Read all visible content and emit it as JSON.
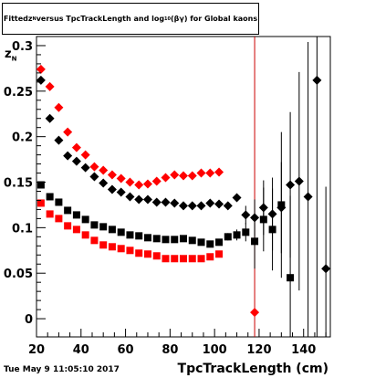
{
  "title_parts": [
    "Fitted ",
    "z",
    "N",
    " versus TpcTrackLength and log",
    "10",
    "(βγ) for Global kaons"
  ],
  "ylabel_main": "z",
  "ylabel_sub": "N",
  "xlabel": "TpcTrackLength (cm)",
  "timestamp": "Tue May  9 11:05:10 2017",
  "chart_data": {
    "type": "scatter",
    "title": "Fitted zN versus TpcTrackLength and log10(βγ) for Global kaons",
    "xlabel": "TpcTrackLength (cm)",
    "ylabel": "zN",
    "xlim": [
      20,
      152
    ],
    "ylim": [
      -0.02,
      0.31
    ],
    "x_ticks": [
      20,
      40,
      60,
      80,
      100,
      120,
      140
    ],
    "y_ticks": [
      0,
      0.05,
      0.1,
      0.15,
      0.2,
      0.25,
      0.3
    ],
    "y_tick_labels": [
      "0",
      "0.05",
      "0.1",
      "0.15",
      "0.2",
      "0.25",
      "0.3"
    ],
    "vertical_line": {
      "x": 118,
      "color": "#cc0000"
    },
    "series": [
      {
        "marker": "square",
        "color": "#ff0000",
        "x": [
          22,
          26,
          30,
          34,
          38,
          42,
          46,
          50,
          54,
          58,
          62,
          66,
          70,
          74,
          78,
          82,
          86,
          90,
          94,
          98,
          102
        ],
        "y": [
          0.127,
          0.115,
          0.11,
          0.102,
          0.098,
          0.092,
          0.086,
          0.081,
          0.079,
          0.077,
          0.075,
          0.072,
          0.071,
          0.069,
          0.066,
          0.066,
          0.066,
          0.066,
          0.066,
          0.068,
          0.071
        ]
      },
      {
        "marker": "square",
        "color": "#000000",
        "x": [
          22,
          26,
          30,
          34,
          38,
          42,
          46,
          50,
          54,
          58,
          62,
          66,
          70,
          74,
          78,
          82,
          86,
          90,
          94,
          98,
          102,
          106,
          110,
          114,
          118,
          122,
          126,
          130,
          134
        ],
        "y": [
          0.147,
          0.134,
          0.128,
          0.119,
          0.114,
          0.109,
          0.103,
          0.101,
          0.098,
          0.095,
          0.092,
          0.091,
          0.089,
          0.088,
          0.087,
          0.087,
          0.088,
          0.086,
          0.084,
          0.082,
          0.084,
          0.09,
          0.092,
          0.095,
          0.085,
          0.109,
          0.098,
          0.125,
          0.045
        ],
        "yerr": [
          0.002,
          0.002,
          0.002,
          0.002,
          0.002,
          0.002,
          0.002,
          0.002,
          0.002,
          0.002,
          0.002,
          0.002,
          0.002,
          0.002,
          0.002,
          0.002,
          0.002,
          0.002,
          0.002,
          0.002,
          0.002,
          0.004,
          0.006,
          0.01,
          0.03,
          0.035,
          0.045,
          0.08,
          0.09
        ]
      },
      {
        "marker": "diamond",
        "color": "#ff0000",
        "x": [
          22,
          26,
          30,
          34,
          38,
          42,
          46,
          50,
          54,
          58,
          62,
          66,
          70,
          74,
          78,
          82,
          86,
          90,
          94,
          98,
          102,
          118
        ],
        "y": [
          0.274,
          0.255,
          0.232,
          0.205,
          0.188,
          0.18,
          0.167,
          0.163,
          0.158,
          0.154,
          0.15,
          0.147,
          0.148,
          0.151,
          0.155,
          0.158,
          0.157,
          0.157,
          0.16,
          0.16,
          0.161,
          0.007
        ],
        "yerr": [
          0,
          0,
          0,
          0,
          0,
          0,
          0,
          0,
          0,
          0,
          0,
          0,
          0,
          0,
          0,
          0,
          0,
          0,
          0,
          0,
          0,
          0
        ]
      },
      {
        "marker": "diamond",
        "color": "#000000",
        "x": [
          22,
          26,
          30,
          34,
          38,
          42,
          46,
          50,
          54,
          58,
          62,
          66,
          70,
          74,
          78,
          82,
          86,
          90,
          94,
          98,
          102,
          106,
          110,
          114,
          118,
          122,
          126,
          130,
          134,
          138,
          142,
          146,
          150
        ],
        "y": [
          0.262,
          0.22,
          0.196,
          0.179,
          0.173,
          0.166,
          0.156,
          0.149,
          0.142,
          0.139,
          0.134,
          0.131,
          0.131,
          0.128,
          0.128,
          0.127,
          0.124,
          0.124,
          0.124,
          0.127,
          0.126,
          0.124,
          0.133,
          0.114,
          0.111,
          0.122,
          0.115,
          0.122,
          0.147,
          0.151,
          0.134,
          0.262,
          0.055
        ],
        "yerr": [
          0.002,
          0.002,
          0.002,
          0.002,
          0.002,
          0.002,
          0.002,
          0.002,
          0.002,
          0.002,
          0.002,
          0.002,
          0.002,
          0.002,
          0.002,
          0.002,
          0.002,
          0.002,
          0.002,
          0.002,
          0.002,
          0.003,
          0.004,
          0.01,
          0.02,
          0.03,
          0.04,
          0.05,
          0.08,
          0.12,
          0.17,
          0.3,
          0.09
        ]
      }
    ]
  }
}
